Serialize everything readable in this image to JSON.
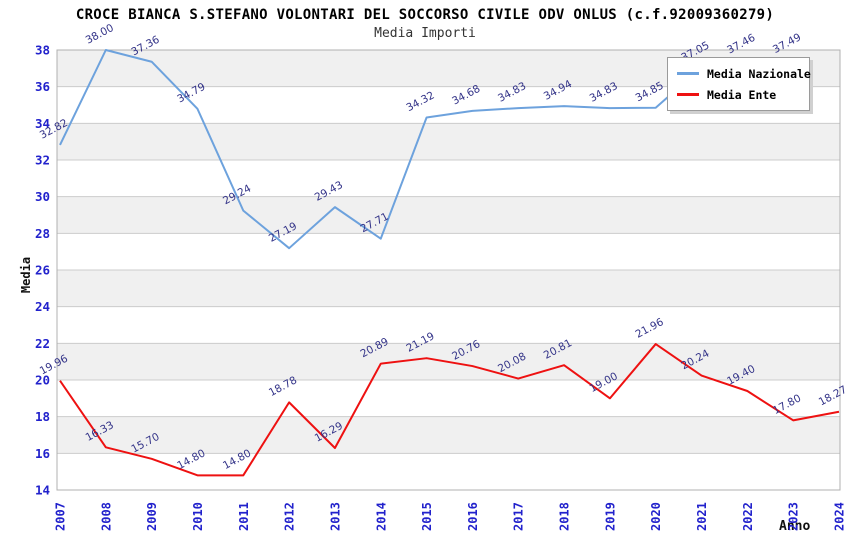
{
  "title": "CROCE BIANCA S.STEFANO VOLONTARI DEL SOCCORSO CIVILE ODV ONLUS (c.f.92009360279)",
  "subtitle": "Media Importi",
  "legend": {
    "items": [
      {
        "label": "Media Nazionale",
        "color": "#6da2dd"
      },
      {
        "label": "Media Ente",
        "color": "#ee1111"
      }
    ]
  },
  "axes": {
    "y_title": "Media",
    "x_title": "Anno",
    "y_ticks": [
      38,
      36,
      34,
      32,
      30,
      28,
      26,
      24,
      22,
      20,
      18,
      16,
      14
    ],
    "x_ticks": [
      "2007",
      "2008",
      "2009",
      "2010",
      "2011",
      "2012",
      "2013",
      "2014",
      "2015",
      "2016",
      "2017",
      "2018",
      "2019",
      "2020",
      "2021",
      "2022",
      "2023",
      "2024"
    ]
  },
  "chart_data": {
    "type": "line",
    "title": "Media Importi",
    "xlabel": "Anno",
    "ylabel": "Media",
    "ylim": [
      14,
      38
    ],
    "xlim": [
      2007,
      2024
    ],
    "grid": true,
    "legend_position": "top-right",
    "x": [
      2007,
      2008,
      2009,
      2010,
      2011,
      2012,
      2013,
      2014,
      2015,
      2016,
      2017,
      2018,
      2019,
      2020,
      2021,
      2022,
      2023,
      2024
    ],
    "series": [
      {
        "name": "Media Nazionale",
        "color": "#6da2dd",
        "x": [
          2007,
          2008,
          2009,
          2010,
          2011,
          2012,
          2013,
          2014,
          2015,
          2016,
          2017,
          2018,
          2019,
          2020,
          2021,
          2022,
          2023
        ],
        "values": [
          32.82,
          38.0,
          37.36,
          34.79,
          29.24,
          27.19,
          29.43,
          27.71,
          34.32,
          34.68,
          34.83,
          34.94,
          34.83,
          34.85,
          37.05,
          37.46,
          37.49
        ]
      },
      {
        "name": "Media Ente",
        "color": "#ee1111",
        "x": [
          2007,
          2008,
          2009,
          2010,
          2011,
          2012,
          2013,
          2014,
          2015,
          2016,
          2017,
          2018,
          2019,
          2020,
          2021,
          2022,
          2023,
          2024
        ],
        "values": [
          19.96,
          16.33,
          15.7,
          14.8,
          14.8,
          18.78,
          16.29,
          20.89,
          21.19,
          20.76,
          20.08,
          20.81,
          19.0,
          21.96,
          20.24,
          19.4,
          17.8,
          18.27
        ]
      }
    ]
  },
  "colors": {
    "tick_label": "#2222cc",
    "data_label": "#333388",
    "grid": "#cccccc",
    "plot_border": "#b0b0b0",
    "band_gray": "#f0f0f0",
    "band_white": "#ffffff",
    "background": "#ffffff"
  }
}
